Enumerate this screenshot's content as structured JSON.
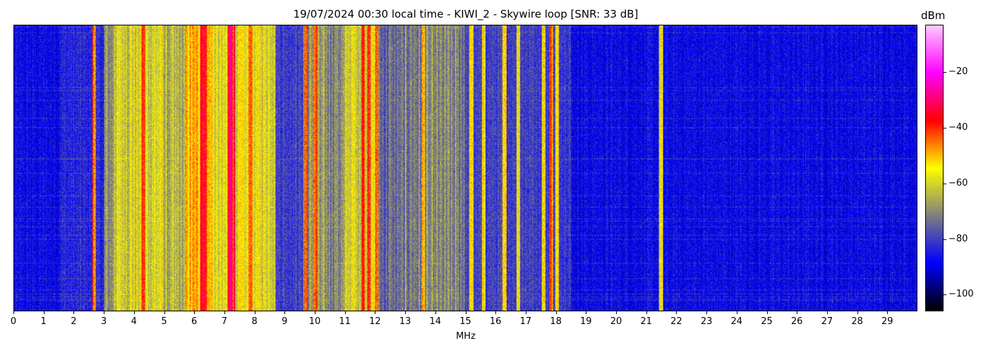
{
  "chart_data": {
    "type": "heatmap",
    "title": "19/07/2024 00:30 local time - KIWI_2 - Skywire loop [SNR: 33 dB]",
    "xlabel": "MHz",
    "ylabel": "",
    "xlim": [
      0,
      30
    ],
    "xticks": [
      "0",
      "1",
      "2",
      "3",
      "4",
      "5",
      "6",
      "7",
      "8",
      "9",
      "10",
      "11",
      "12",
      "13",
      "14",
      "15",
      "16",
      "17",
      "18",
      "19",
      "20",
      "21",
      "22",
      "23",
      "24",
      "25",
      "26",
      "27",
      "28",
      "29"
    ],
    "colorbar": {
      "label": "dBm",
      "range": [
        -106,
        -3
      ],
      "ticks": [
        "−20",
        "−40",
        "−60",
        "−80",
        "−100"
      ],
      "tick_values": [
        -20,
        -40,
        -60,
        -80,
        -100
      ],
      "colors": [
        "#000000",
        "#0000ff",
        "#808080",
        "#ffff00",
        "#ff0000",
        "#ff00ff",
        "#ffc8ff"
      ]
    },
    "band_levels_dbm": [
      {
        "from_mhz": 0.0,
        "to_mhz": 1.5,
        "level": -88
      },
      {
        "from_mhz": 1.5,
        "to_mhz": 3.0,
        "level": -84
      },
      {
        "from_mhz": 3.0,
        "to_mhz": 3.3,
        "level": -70
      },
      {
        "from_mhz": 3.3,
        "to_mhz": 5.0,
        "level": -60
      },
      {
        "from_mhz": 5.0,
        "to_mhz": 5.7,
        "level": -66
      },
      {
        "from_mhz": 5.7,
        "to_mhz": 6.6,
        "level": -51
      },
      {
        "from_mhz": 6.6,
        "to_mhz": 7.1,
        "level": -59
      },
      {
        "from_mhz": 7.1,
        "to_mhz": 7.35,
        "level": -38
      },
      {
        "from_mhz": 7.35,
        "to_mhz": 8.7,
        "level": -58
      },
      {
        "from_mhz": 8.7,
        "to_mhz": 9.6,
        "level": -80
      },
      {
        "from_mhz": 9.6,
        "to_mhz": 11.0,
        "level": -70
      },
      {
        "from_mhz": 11.0,
        "to_mhz": 12.1,
        "level": -60
      },
      {
        "from_mhz": 12.1,
        "to_mhz": 13.0,
        "level": -75
      },
      {
        "from_mhz": 13.0,
        "to_mhz": 15.0,
        "level": -72
      },
      {
        "from_mhz": 15.0,
        "to_mhz": 18.5,
        "level": -80
      },
      {
        "from_mhz": 18.5,
        "to_mhz": 30.0,
        "level": -88
      }
    ],
    "strong_signals_mhz": [
      {
        "f": 2.65,
        "level": -45
      },
      {
        "f": 4.3,
        "level": -42
      },
      {
        "f": 6.25,
        "level": -35
      },
      {
        "f": 6.35,
        "level": -38
      },
      {
        "f": 7.2,
        "level": -30
      },
      {
        "f": 7.85,
        "level": -42
      },
      {
        "f": 9.7,
        "level": -45
      },
      {
        "f": 10.0,
        "level": -45
      },
      {
        "f": 11.6,
        "level": -40
      },
      {
        "f": 11.8,
        "level": -38
      },
      {
        "f": 12.05,
        "level": -45
      },
      {
        "f": 13.6,
        "level": -52
      },
      {
        "f": 15.2,
        "level": -58
      },
      {
        "f": 15.6,
        "level": -58
      },
      {
        "f": 16.3,
        "level": -58
      },
      {
        "f": 16.75,
        "level": -55
      },
      {
        "f": 17.6,
        "level": -55
      },
      {
        "f": 17.85,
        "level": -45
      },
      {
        "f": 18.05,
        "level": -58
      },
      {
        "f": 21.5,
        "level": -62
      }
    ]
  }
}
